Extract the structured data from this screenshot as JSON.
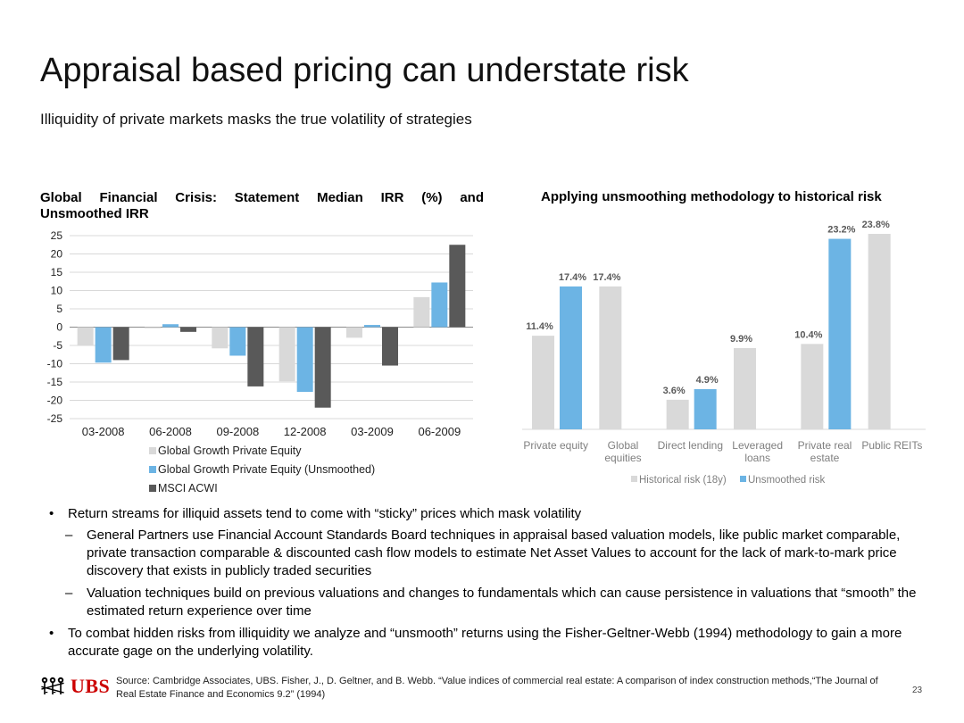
{
  "title": "Appraisal based pricing can understate risk",
  "subtitle": "Illiquidity of private markets masks the true volatility of strategies",
  "chart_data": [
    {
      "type": "bar",
      "title_line1": "Global Financial Crisis: Statement Median IRR (%) and",
      "title_line2": "Unsmoothed IRR",
      "categories": [
        "03-2008",
        "06-2008",
        "09-2008",
        "12-2008",
        "03-2009",
        "06-2009"
      ],
      "series": [
        {
          "name": "Global Growth Private Equity",
          "color": "#d9d9d9",
          "values": [
            -5,
            -0.3,
            -5.8,
            -14.8,
            -2.9,
            8.2
          ]
        },
        {
          "name": "Global Growth Private Equity (Unsmoothed)",
          "color": "#6cb4e4",
          "values": [
            -9.7,
            0.8,
            -7.8,
            -17.7,
            0.6,
            12.2
          ]
        },
        {
          "name": "MSCI ACWI",
          "color": "#595959",
          "values": [
            -9,
            -1.3,
            -16.2,
            -22,
            -10.5,
            22.5
          ]
        }
      ],
      "ylim": [
        -25,
        25
      ],
      "yticks": [
        25,
        20,
        15,
        10,
        5,
        0,
        -5,
        -10,
        -15,
        -20,
        -25
      ],
      "legend_position": "bottom"
    },
    {
      "type": "bar",
      "title": "Applying unsmoothing methodology to historical risk",
      "categories": [
        {
          "line1": "Private equity",
          "line2": ""
        },
        {
          "line1": "Global",
          "line2": "equities"
        },
        {
          "line1": "Direct lending",
          "line2": ""
        },
        {
          "line1": "Leveraged",
          "line2": "loans"
        },
        {
          "line1": "Private real",
          "line2": "estate"
        },
        {
          "line1": "Public REITs",
          "line2": ""
        }
      ],
      "series": [
        {
          "name": "Historical risk (18y)",
          "color": "#d9d9d9",
          "values": [
            11.4,
            17.4,
            3.6,
            9.9,
            10.4,
            23.8
          ],
          "labels": [
            "11.4%",
            "17.4%",
            "3.6%",
            "9.9%",
            "10.4%",
            "23.8%"
          ]
        },
        {
          "name": "Unsmoothed risk",
          "color": "#6cb4e4",
          "values": [
            17.4,
            null,
            4.9,
            null,
            23.2,
            null
          ],
          "labels": [
            "17.4%",
            null,
            "4.9%",
            null,
            "23.2%",
            null
          ]
        }
      ],
      "ylim": [
        0,
        25
      ],
      "legend_position": "bottom"
    }
  ],
  "bullets": [
    {
      "level": 1,
      "text": "Return streams for illiquid assets tend to come with “sticky” prices which mask volatility"
    },
    {
      "level": 2,
      "dash": "–",
      "text": "General Partners use Financial Account Standards Board techniques in appraisal based valuation models, like public market comparable, private transaction comparable & discounted cash flow models to estimate Net Asset Values to account for the lack of mark-to-mark price discovery that exists in publicly traded securities"
    },
    {
      "level": 2,
      "dash": "–",
      "text": "Valuation techniques build on previous valuations and changes to fundamentals which can cause persistence in valuations that “smooth” the estimated return experience over time"
    },
    {
      "level": 1,
      "text": "To combat hidden risks from illiquidity we analyze and “unsmooth” returns using the Fisher-Geltner-Webb (1994) methodology to gain a more accurate gage on the underlying volatility."
    }
  ],
  "footer": {
    "logo_text": "UBS",
    "source": "Source: Cambridge Associates, UBS. Fisher, J., D. Geltner, and B. Webb. “Value indices of commercial real estate: A comparison of index construction methods,“The Journal of Real Estate Finance and Economics 9.2” (1994)",
    "page_number": "23"
  }
}
